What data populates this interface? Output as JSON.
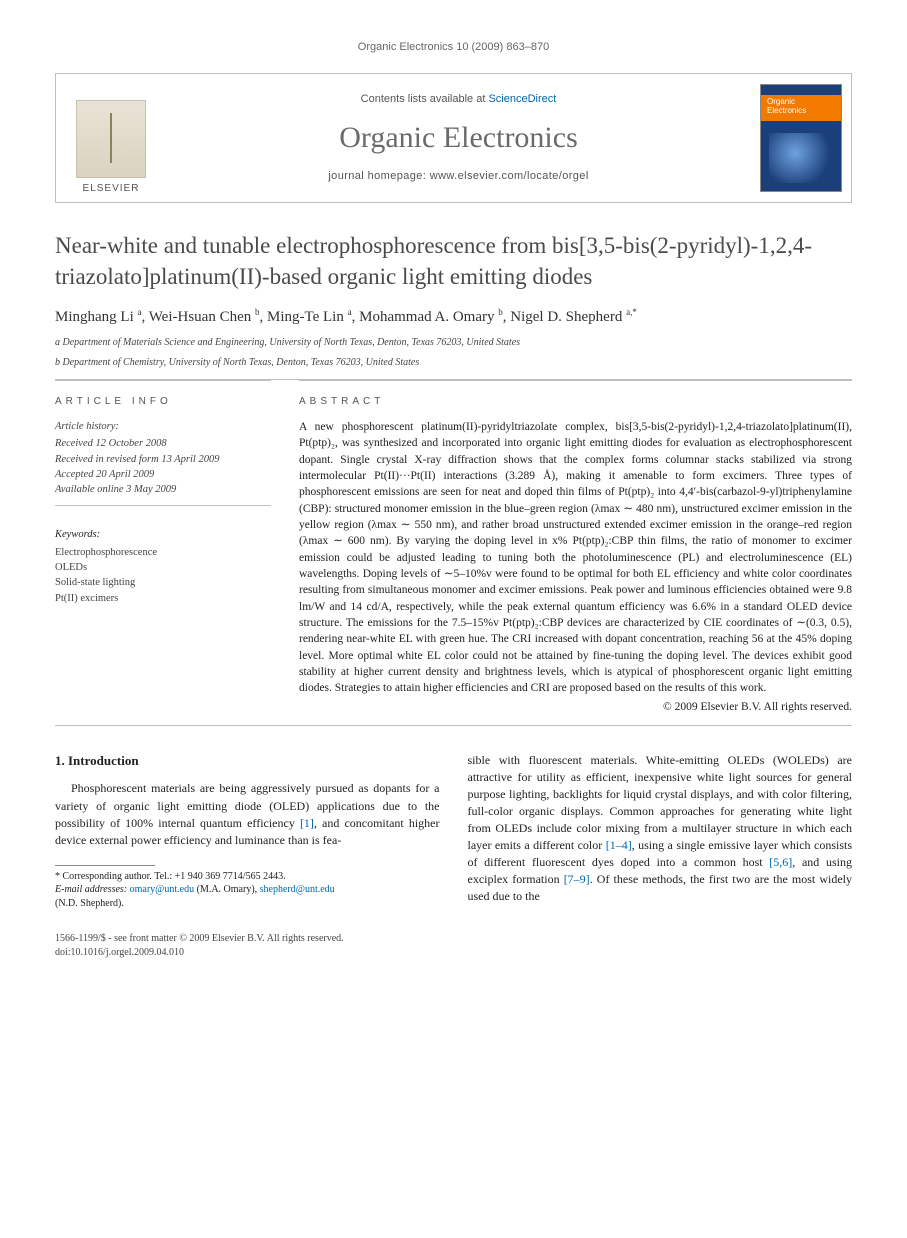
{
  "running_head": "Organic Electronics 10 (2009) 863–870",
  "masthead": {
    "contents_prefix": "Contents lists available at ",
    "sciencedirect": "ScienceDirect",
    "journal": "Organic Electronics",
    "homepage_label": "journal homepage: ",
    "homepage_url": "www.elsevier.com/locate/orgel",
    "publisher": "ELSEVIER",
    "cover_line1": "Organic",
    "cover_line2": "Electronics"
  },
  "title": "Near-white and tunable electrophosphorescence from bis[3,5-bis(2-pyridyl)-1,2,4-triazolato]platinum(II)-based organic light emitting diodes",
  "authors_html": "Minghang Li <sup>a</sup>, Wei-Hsuan Chen <sup>b</sup>, Ming-Te Lin <sup>a</sup>, Mohammad A. Omary <sup>b</sup>, Nigel D. Shepherd <sup>a,*</sup>",
  "affiliations": {
    "a": "a Department of Materials Science and Engineering, University of North Texas, Denton, Texas 76203, United States",
    "b": "b Department of Chemistry, University of North Texas, Denton, Texas 76203, United States"
  },
  "article_info": {
    "heading": "ARTICLE INFO",
    "history_label": "Article history:",
    "received": "Received 12 October 2008",
    "revised": "Received in revised form 13 April 2009",
    "accepted": "Accepted 20 April 2009",
    "online": "Available online 3 May 2009",
    "keywords_label": "Keywords:",
    "keywords": [
      "Electrophosphorescence",
      "OLEDs",
      "Solid-state lighting",
      "Pt(II) excimers"
    ]
  },
  "abstract": {
    "heading": "ABSTRACT",
    "text": "A new phosphorescent platinum(II)-pyridyltriazolate complex, bis[3,5-bis(2-pyridyl)-1,2,4-triazolato]platinum(II), Pt(ptp)₂, was synthesized and incorporated into organic light emitting diodes for evaluation as electrophosphorescent dopant. Single crystal X-ray diffraction shows that the complex forms columnar stacks stabilized via strong intermolecular Pt(II)···Pt(II) interactions (3.289 Å), making it amenable to form excimers. Three types of phosphorescent emissions are seen for neat and doped thin films of Pt(ptp)₂ into 4,4′-bis(carbazol-9-yl)triphenylamine (CBP): structured monomer emission in the blue–green region (λmax ∼ 480 nm), unstructured excimer emission in the yellow region (λmax ∼ 550 nm), and rather broad unstructured extended excimer emission in the orange–red region (λmax ∼ 600 nm). By varying the doping level in x% Pt(ptp)₂:CBP thin films, the ratio of monomer to excimer emission could be adjusted leading to tuning both the photoluminescence (PL) and electroluminescence (EL) wavelengths. Doping levels of ∼5–10%v were found to be optimal for both EL efficiency and white color coordinates resulting from simultaneous monomer and excimer emissions. Peak power and luminous efficiencies obtained were 9.8 lm/W and 14 cd/A, respectively, while the peak external quantum efficiency was 6.6% in a standard OLED device structure. The emissions for the 7.5–15%v Pt(ptp)₂:CBP devices are characterized by CIE coordinates of ∼(0.3, 0.5), rendering near-white EL with green hue. The CRI increased with dopant concentration, reaching 56 at the 45% doping level. More optimal white EL color could not be attained by fine-tuning the doping level. The devices exhibit good stability at higher current density and brightness levels, which is atypical of phosphorescent organic light emitting diodes. Strategies to attain higher efficiencies and CRI are proposed based on the results of this work.",
    "copyright": "© 2009 Elsevier B.V. All rights reserved."
  },
  "intro": {
    "heading": "1. Introduction",
    "para1_a": "Phosphorescent materials are being aggressively pursued as dopants for a variety of organic light emitting diode (OLED) applications due to the possibility of 100% internal quantum efficiency ",
    "ref1": "[1]",
    "para1_b": ", and concomitant higher device external power efficiency and luminance than is fea",
    "para2_a": "sible with fluorescent materials. White-emitting OLEDs (WOLEDs) are attractive for utility as efficient, inexpensive white light sources for general purpose lighting, backlights for liquid crystal displays, and with color filtering, full-color organic displays. Common approaches for generating white light from OLEDs include color mixing from a multilayer structure in which each layer emits a different color ",
    "ref2": "[1–4]",
    "para2_b": ", using a single emissive layer which consists of different fluorescent dyes doped into a common host ",
    "ref3": "[5,6]",
    "para2_c": ", and using exciplex formation ",
    "ref4": "[7–9]",
    "para2_d": ". Of these methods, the first two are the most widely used due to the"
  },
  "footnotes": {
    "corr": "* Corresponding author. Tel.: +1 940 369 7714/565 2443.",
    "email_label": "E-mail addresses:",
    "email1": "omary@unt.edu",
    "name1": "(M.A. Omary),",
    "email2": "shepherd@unt.edu",
    "name2": "(N.D. Shepherd)."
  },
  "footer": {
    "line1": "1566-1199/$ - see front matter © 2009 Elsevier B.V. All rights reserved.",
    "line2": "doi:10.1016/j.orgel.2009.04.010"
  },
  "colors": {
    "link": "#0066aa",
    "rule": "#bfbfbf",
    "text": "#222222",
    "muted": "#555555",
    "title_gray": "#4a4a4a"
  }
}
